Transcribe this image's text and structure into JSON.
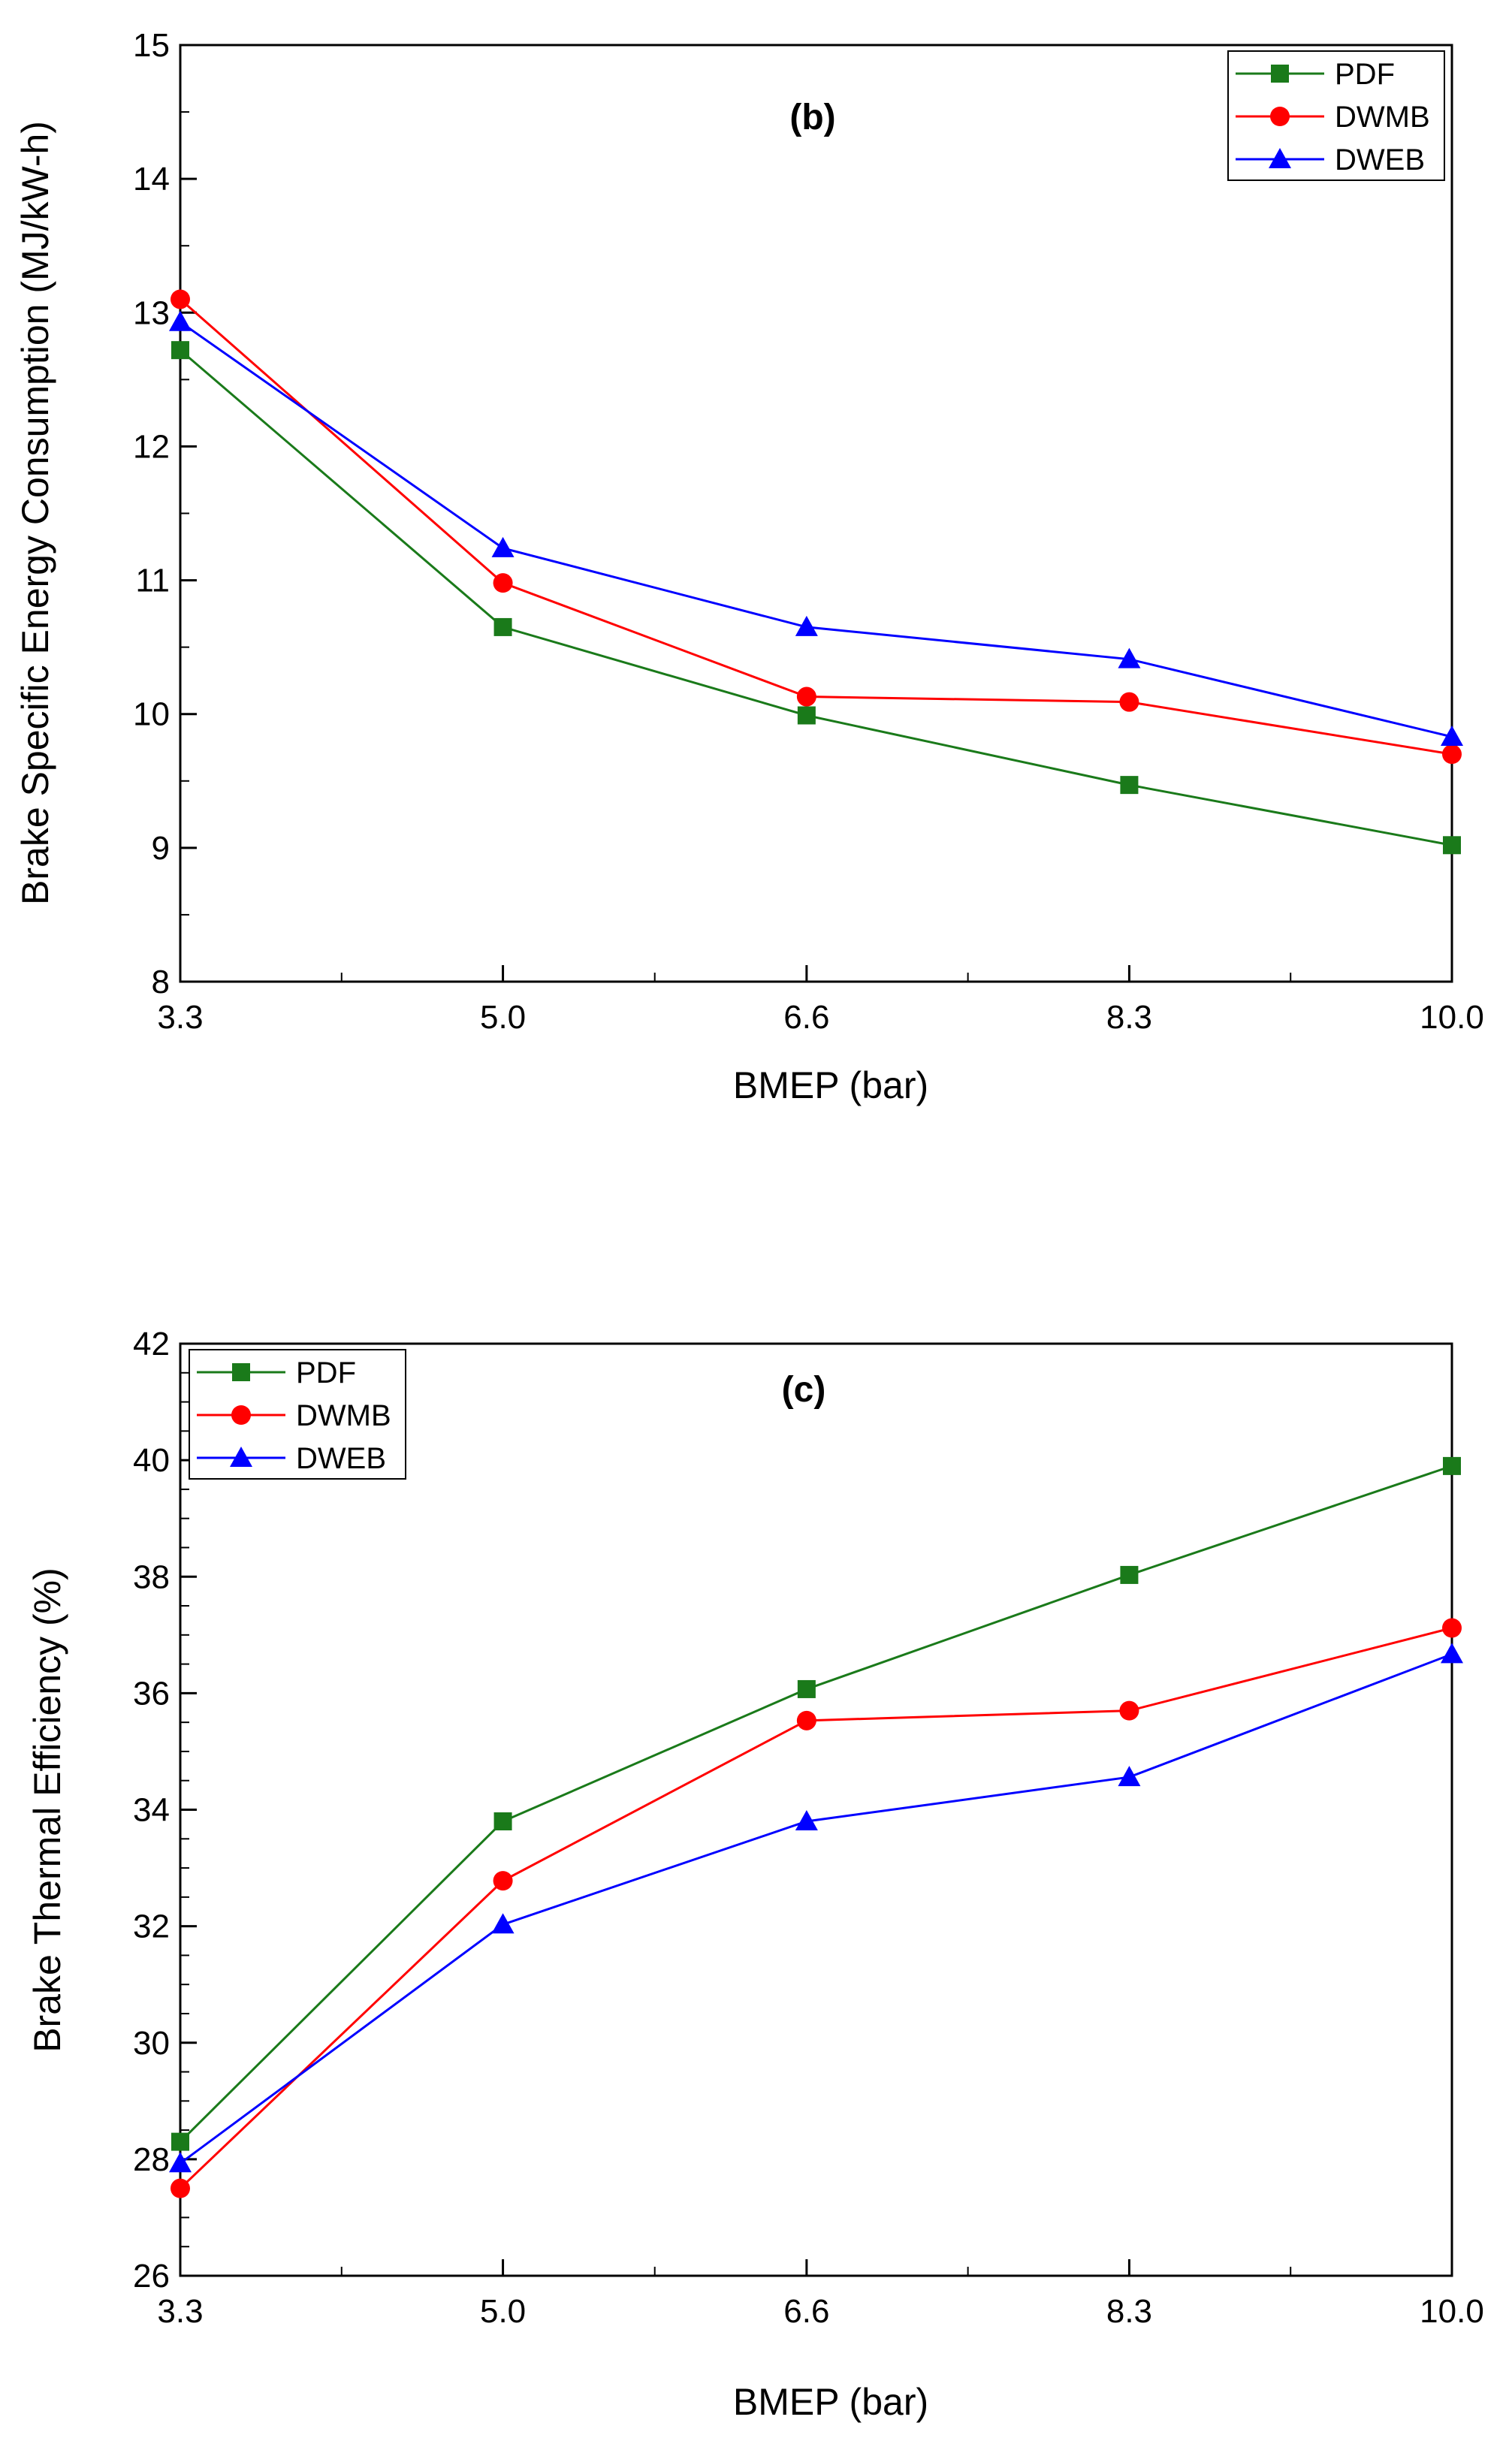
{
  "chart_data": [
    {
      "type": "line",
      "panel_label": "(b)",
      "title": "",
      "xlabel": "BMEP (bar)",
      "ylabel": "Brake Specific Energy Consumption (MJ/kW-h)",
      "x": [
        3.3,
        5.0,
        6.6,
        8.3,
        10.0
      ],
      "x_tick_labels": [
        "3.3",
        "5.0",
        "6.6",
        "8.3",
        "10.0"
      ],
      "xlim": [
        3.3,
        10.0
      ],
      "ylim": [
        8,
        15
      ],
      "y_ticks": [
        8,
        9,
        10,
        11,
        12,
        13,
        14,
        15
      ],
      "legend_position": "top-right",
      "series": [
        {
          "name": "PDF",
          "color": "#1a7a1a",
          "marker": "square",
          "values": [
            12.72,
            10.65,
            9.99,
            9.47,
            9.02
          ]
        },
        {
          "name": "DWMB",
          "color": "#ff0000",
          "marker": "circle",
          "values": [
            13.1,
            10.98,
            10.13,
            10.09,
            9.7
          ]
        },
        {
          "name": "DWEB",
          "color": "#0000ff",
          "marker": "triangle",
          "values": [
            12.93,
            11.24,
            10.65,
            10.41,
            9.83
          ]
        }
      ]
    },
    {
      "type": "line",
      "panel_label": "(c)",
      "title": "",
      "xlabel": "BMEP (bar)",
      "ylabel": "Brake Thermal Efficiency (%)",
      "x": [
        3.3,
        5.0,
        6.6,
        8.3,
        10.0
      ],
      "x_tick_labels": [
        "3.3",
        "5.0",
        "6.6",
        "8.3",
        "10.0"
      ],
      "xlim": [
        3.3,
        10.0
      ],
      "ylim": [
        26,
        42
      ],
      "y_ticks": [
        26,
        28,
        30,
        32,
        34,
        36,
        38,
        40,
        42
      ],
      "legend_position": "top-left",
      "series": [
        {
          "name": "PDF",
          "color": "#1a7a1a",
          "marker": "square",
          "values": [
            28.3,
            33.8,
            36.07,
            38.03,
            39.9
          ]
        },
        {
          "name": "DWMB",
          "color": "#ff0000",
          "marker": "circle",
          "values": [
            27.5,
            32.78,
            35.53,
            35.7,
            37.12
          ]
        },
        {
          "name": "DWEB",
          "color": "#0000ff",
          "marker": "triangle",
          "values": [
            27.93,
            32.03,
            33.8,
            34.56,
            36.67
          ]
        }
      ]
    }
  ]
}
